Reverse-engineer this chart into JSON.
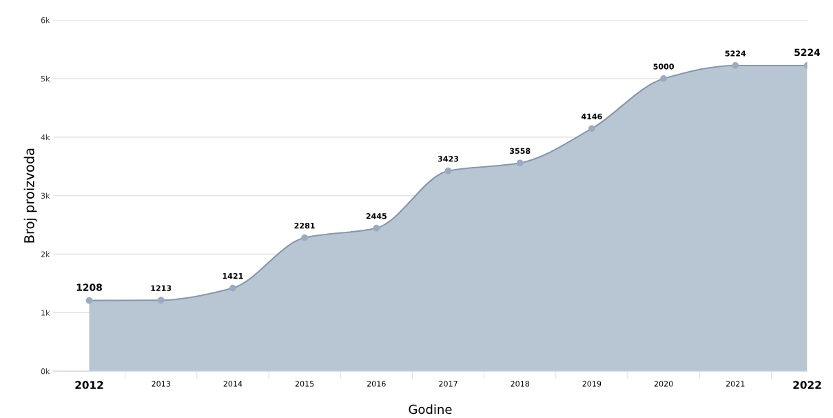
{
  "chart_data": {
    "type": "area",
    "xlabel": "Godine",
    "ylabel": "Broj proizvoda",
    "categories": [
      "2012",
      "2013",
      "2014",
      "2015",
      "2016",
      "2017",
      "2018",
      "2019",
      "2020",
      "2021",
      "2022"
    ],
    "series": [
      {
        "color": "#b8c6d4",
        "values": [
          1208,
          1213,
          1421,
          2281,
          2445,
          3423,
          3558,
          4146,
          5000,
          5224,
          5224
        ]
      }
    ],
    "ylim": [
      0,
      6000
    ],
    "yticks": [
      {
        "value": 0,
        "label": "0k"
      },
      {
        "value": 1000,
        "label": "1k"
      },
      {
        "value": 2000,
        "label": "2k"
      },
      {
        "value": 3000,
        "label": "3k"
      },
      {
        "value": 4000,
        "label": "4k"
      },
      {
        "value": 5000,
        "label": "5k"
      },
      {
        "value": 6000,
        "label": "6k"
      }
    ],
    "grid": "y",
    "marker": "circle",
    "data_labels": true,
    "legend": false
  }
}
